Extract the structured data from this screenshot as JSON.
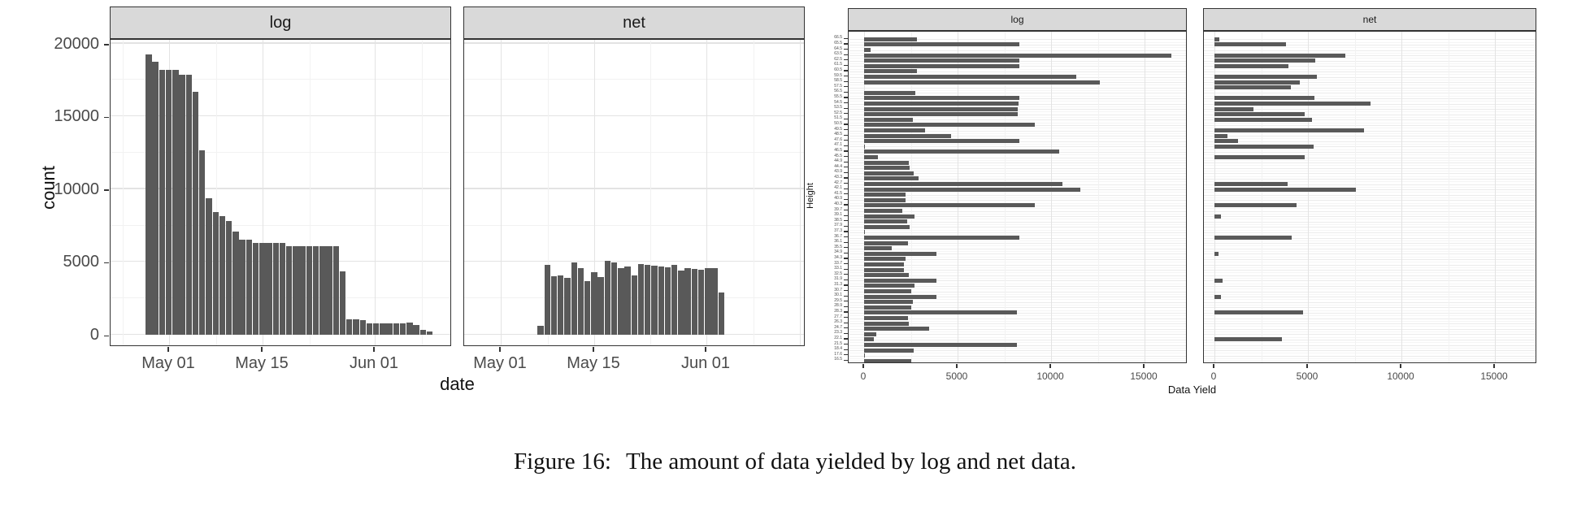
{
  "caption": {
    "prefix": "Figure 16:",
    "text": "The amount of data yielded by log and net data."
  },
  "colors": {
    "bar_fill": "#595959",
    "strip_bg": "#d9d9d9",
    "panel_border": "#333333",
    "grid_major": "#e3e3e3",
    "grid_minor": "#f2f2f2",
    "axis_text": "#4a4a4a"
  },
  "chart_data": [
    {
      "type": "bar",
      "subtype": "histogram-by-date-faceted",
      "facets": [
        "log",
        "net"
      ],
      "xlabel": "date",
      "ylabel": "count",
      "x_tick_labels": [
        "May 01",
        "May 15",
        "Jun 01"
      ],
      "y_tick_labels": [
        "0",
        "5000",
        "10000",
        "15000",
        "20000"
      ],
      "y_ticks": [
        0,
        5000,
        10000,
        15000,
        20000
      ],
      "ylim": [
        0,
        20000
      ],
      "x_range": [
        "Apr 28",
        "Jun 09"
      ],
      "bin_width": "1 day",
      "grid": true,
      "series": [
        {
          "name": "log",
          "values": [
            19250,
            18750,
            18200,
            18200,
            18200,
            17850,
            17850,
            16700,
            12650,
            9400,
            8450,
            8150,
            7800,
            7100,
            6550,
            6550,
            6330,
            6330,
            6330,
            6330,
            6330,
            6060,
            6060,
            6060,
            6060,
            6060,
            6060,
            6060,
            6060,
            4330,
            1080,
            1080,
            990,
            790,
            790,
            790,
            790,
            790,
            790,
            840,
            650,
            340,
            230
          ]
        },
        {
          "name": "net",
          "values": [
            0,
            0,
            0,
            0,
            0,
            0,
            0,
            0,
            0,
            600,
            4800,
            4000,
            4090,
            3900,
            4950,
            4580,
            3670,
            4300,
            3950,
            5100,
            4950,
            4600,
            4700,
            4100,
            4850,
            4800,
            4750,
            4700,
            4650,
            4800,
            4400,
            4600,
            4500,
            4450,
            4550,
            4550,
            2900,
            0,
            0,
            0,
            0,
            0,
            0
          ]
        }
      ]
    },
    {
      "type": "bar",
      "subtype": "horizontal-faceted",
      "facets": [
        "log",
        "net"
      ],
      "xlabel": "Data Yield",
      "ylabel": "Height",
      "x_tick_labels": [
        "0",
        "5000",
        "10000",
        "15000"
      ],
      "x_ticks": [
        0,
        5000,
        10000,
        15000
      ],
      "xlim": [
        0,
        17500
      ],
      "grid": true,
      "categories": [
        "66.5",
        "65.5",
        "64.5",
        "63.5",
        "62.5",
        "61.5",
        "60.5",
        "59.5",
        "58.5",
        "57.5",
        "56.5",
        "55.5",
        "54.5",
        "53.5",
        "52.5",
        "51.5",
        "50.5",
        "49.5",
        "48.5",
        "47.6",
        "47.1",
        "46.5",
        "45.5",
        "44.9",
        "44.4",
        "43.9",
        "43.3",
        "42.7",
        "42.1",
        "41.5",
        "40.9",
        "40.3",
        "39.7",
        "39.1",
        "38.5",
        "37.9",
        "37.3",
        "36.7",
        "36.1",
        "35.5",
        "34.9",
        "34.3",
        "33.7",
        "33.1",
        "32.5",
        "31.9",
        "31.3",
        "30.7",
        "30.1",
        "29.5",
        "28.9",
        "28.3",
        "27.7",
        "26.3",
        "24.7",
        "23.3",
        "22.1",
        "21.5",
        "18.4",
        "17.6",
        "16.5"
      ],
      "series": [
        {
          "name": "log",
          "values": [
            2840,
            8290,
            360,
            16430,
            8290,
            8290,
            2840,
            11355,
            12625,
            0,
            2740,
            8290,
            8260,
            8215,
            8215,
            2595,
            9110,
            3245,
            4640,
            8290,
            45,
            10420,
            750,
            2380,
            2420,
            2665,
            2925,
            10590,
            11570,
            2230,
            2205,
            9150,
            2050,
            2695,
            2305,
            2450,
            45,
            8290,
            2335,
            1470,
            3860,
            2230,
            2135,
            2135,
            2405,
            3890,
            2710,
            2520,
            3860,
            2625,
            2520,
            8185,
            2335,
            2405,
            3460,
            650,
            505,
            8185,
            2665,
            45,
            2520
          ]
        },
        {
          "name": "net",
          "values": [
            275,
            3820,
            0,
            7020,
            5375,
            3935,
            0,
            5460,
            4555,
            4090,
            0,
            5330,
            8340,
            2090,
            4815,
            5230,
            0,
            8000,
            690,
            1255,
            5315,
            0,
            4840,
            0,
            0,
            0,
            0,
            3905,
            7550,
            0,
            0,
            4395,
            0,
            345,
            0,
            0,
            0,
            4135,
            0,
            0,
            200,
            0,
            0,
            0,
            0,
            430,
            0,
            0,
            345,
            0,
            0,
            4755,
            0,
            0,
            0,
            0,
            3590,
            0,
            0,
            0,
            0
          ]
        }
      ]
    }
  ]
}
